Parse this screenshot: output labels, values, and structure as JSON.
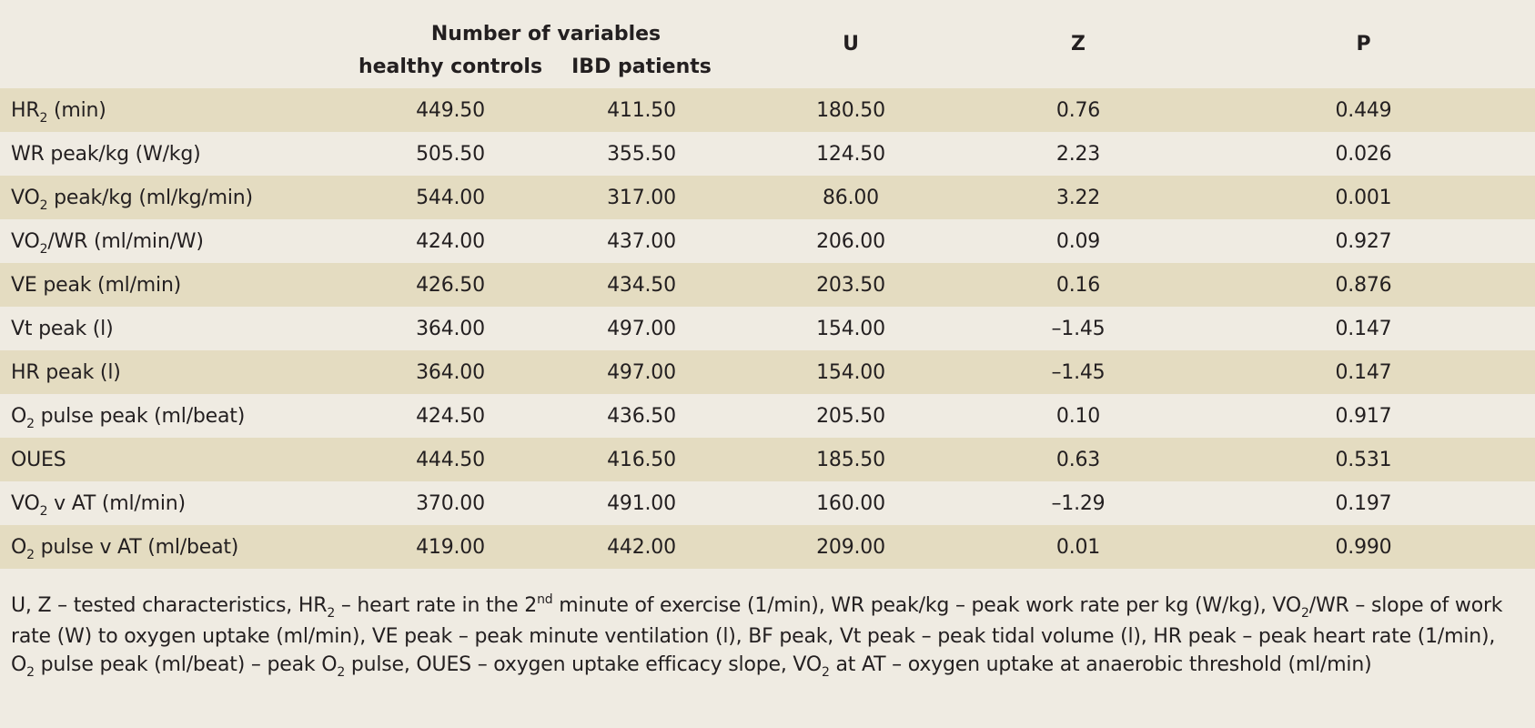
{
  "header": {
    "group_label": "Number of variables",
    "col_healthy": "healthy controls",
    "col_ibd": "IBD patients",
    "col_u": "U",
    "col_z": "Z",
    "col_p": "P"
  },
  "rows": [
    {
      "pre": "HR",
      "sub": "2",
      "post": " (min)",
      "healthy": "449.50",
      "ibd": "411.50",
      "u": "180.50",
      "z": "0.76",
      "p": "0.449"
    },
    {
      "pre": "WR peak/kg (W/kg)",
      "sub": "",
      "post": "",
      "healthy": "505.50",
      "ibd": "355.50",
      "u": "124.50",
      "z": "2.23",
      "p": "0.026"
    },
    {
      "pre": "VO",
      "sub": "2",
      "post": " peak/kg (ml/kg/min)",
      "healthy": "544.00",
      "ibd": "317.00",
      "u": "86.00",
      "z": "3.22",
      "p": "0.001"
    },
    {
      "pre": "VO",
      "sub": "2",
      "post": "/WR (ml/min/W)",
      "healthy": "424.00",
      "ibd": "437.00",
      "u": "206.00",
      "z": "0.09",
      "p": "0.927"
    },
    {
      "pre": "VE peak (ml/min)",
      "sub": "",
      "post": "",
      "healthy": "426.50",
      "ibd": "434.50",
      "u": "203.50",
      "z": "0.16",
      "p": "0.876"
    },
    {
      "pre": "Vt peak (l)",
      "sub": "",
      "post": "",
      "healthy": "364.00",
      "ibd": "497.00",
      "u": "154.00",
      "z": "–1.45",
      "p": "0.147"
    },
    {
      "pre": "HR peak (l)",
      "sub": "",
      "post": "",
      "healthy": "364.00",
      "ibd": "497.00",
      "u": "154.00",
      "z": "–1.45",
      "p": "0.147"
    },
    {
      "pre": "O",
      "sub": "2",
      "post": " pulse peak (ml/beat)",
      "healthy": "424.50",
      "ibd": "436.50",
      "u": "205.50",
      "z": "0.10",
      "p": "0.917"
    },
    {
      "pre": "OUES",
      "sub": "",
      "post": "",
      "healthy": "444.50",
      "ibd": "416.50",
      "u": "185.50",
      "z": "0.63",
      "p": "0.531"
    },
    {
      "pre": "VO",
      "sub": "2",
      "post": " v AT (ml/min)",
      "healthy": "370.00",
      "ibd": "491.00",
      "u": "160.00",
      "z": "–1.29",
      "p": "0.197"
    },
    {
      "pre": "O",
      "sub": "2",
      "post": " pulse v AT (ml/beat)",
      "healthy": "419.00",
      "ibd": "442.00",
      "u": "209.00",
      "z": "0.01",
      "p": "0.990"
    }
  ],
  "footnote": [
    {
      "t": "U, Z – tested characteristics, HR"
    },
    {
      "sub": "2"
    },
    {
      "t": " – heart rate in the 2"
    },
    {
      "sup": "nd"
    },
    {
      "t": " minute of exercise (1/min), WR peak/kg – peak work rate per kg (W/kg), VO"
    },
    {
      "sub": "2"
    },
    {
      "t": "/WR – slope of work rate (W) to oxygen uptake (ml/min), VE peak – peak minute ventilation (l), BF peak, Vt peak – peak tidal volume (l), HR peak – peak heart rate (1/min), O"
    },
    {
      "sub": "2"
    },
    {
      "t": " pulse peak (ml/beat) – peak O"
    },
    {
      "sub": "2"
    },
    {
      "t": " pulse, OUES – oxygen uptake efficacy slope, VO"
    },
    {
      "sub": "2"
    },
    {
      "t": " at AT – oxygen uptake at anaerobic threshold (ml/min)"
    }
  ],
  "colors": {
    "background": "#efebe2",
    "row_shade": "#e4dcc1",
    "text": "#231f20"
  }
}
